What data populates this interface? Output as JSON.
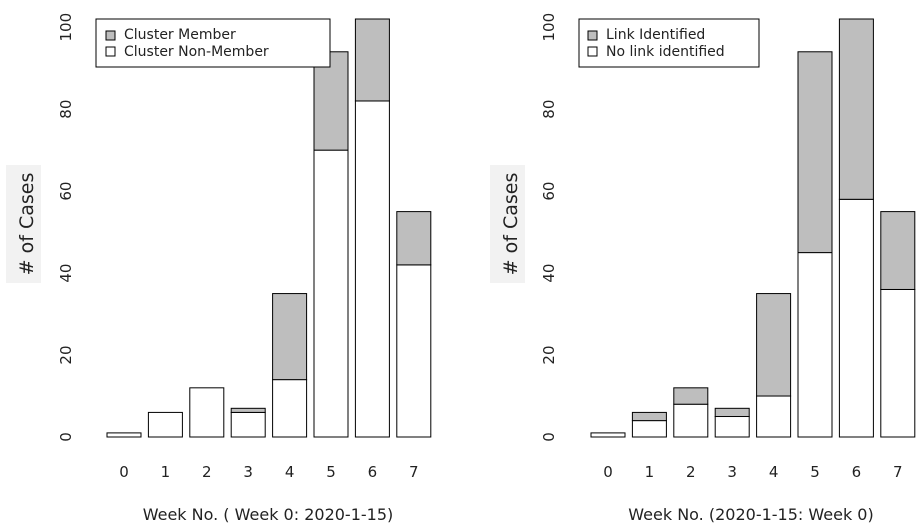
{
  "colors": {
    "stack_bottom": "#ffffff",
    "stack_top": "#bebebe",
    "stroke": "#000000",
    "ylabel_background": "#f2f2f2"
  },
  "chart_data": [
    {
      "type": "bar",
      "stacked": true,
      "categories": [
        "0",
        "1",
        "2",
        "3",
        "4",
        "5",
        "6",
        "7"
      ],
      "series": [
        {
          "name": "Cluster Non-Member",
          "values": [
            1,
            6,
            12,
            6,
            14,
            70,
            82,
            42
          ]
        },
        {
          "name": "Cluster Member",
          "values": [
            0,
            0,
            0,
            1,
            21,
            24,
            20,
            13
          ]
        }
      ],
      "legend": [
        "Cluster Member",
        "Cluster Non-Member"
      ],
      "legend_position": "top-left",
      "xlabel": "Week No. ( Week 0: 2020-1-15)",
      "ylabel": "# of Cases",
      "ylim": [
        0,
        102
      ],
      "yticks": [
        "0",
        "20",
        "40",
        "60",
        "80",
        "100"
      ],
      "grid": false
    },
    {
      "type": "bar",
      "stacked": true,
      "categories": [
        "0",
        "1",
        "2",
        "3",
        "4",
        "5",
        "6",
        "7"
      ],
      "series": [
        {
          "name": "No link identified",
          "values": [
            1,
            4,
            8,
            5,
            10,
            45,
            58,
            36
          ]
        },
        {
          "name": "Link Identified",
          "values": [
            0,
            2,
            4,
            2,
            25,
            49,
            44,
            19
          ]
        }
      ],
      "legend": [
        "Link Identified",
        "No link identified"
      ],
      "legend_position": "top-left",
      "xlabel": "Week No. (2020-1-15: Week 0)",
      "ylabel": "# of Cases",
      "ylim": [
        0,
        102
      ],
      "yticks": [
        "0",
        "20",
        "40",
        "60",
        "80",
        "100"
      ],
      "grid": false
    }
  ]
}
